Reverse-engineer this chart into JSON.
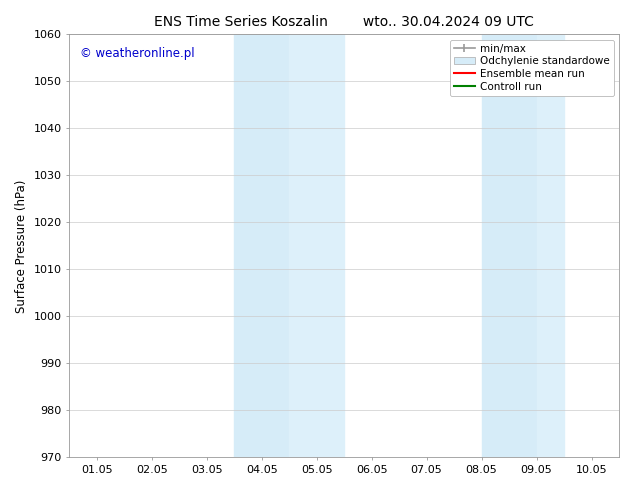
{
  "title_left": "ENS Time Series Koszalin",
  "title_right": "wto.. 30.04.2024 09 UTC",
  "ylabel": "Surface Pressure (hPa)",
  "ylim": [
    970,
    1060
  ],
  "yticks": [
    970,
    980,
    990,
    1000,
    1010,
    1020,
    1030,
    1040,
    1050,
    1060
  ],
  "xtick_labels": [
    "01.05",
    "02.05",
    "03.05",
    "04.05",
    "05.05",
    "06.05",
    "07.05",
    "08.05",
    "09.05",
    "10.05"
  ],
  "xlim_start": 0.0,
  "xlim_end": 9.0,
  "shaded_bands": [
    {
      "x_start": 3.0,
      "x_end": 4.0,
      "color": "#d6ecf8"
    },
    {
      "x_start": 4.0,
      "x_end": 5.0,
      "color": "#ddf0fa"
    },
    {
      "x_start": 7.5,
      "x_end": 8.5,
      "color": "#d6ecf8"
    },
    {
      "x_start": 8.5,
      "x_end": 9.0,
      "color": "#ddf0fa"
    }
  ],
  "background_color": "#ffffff",
  "watermark_text": "© weatheronline.pl",
  "watermark_color": "#0000cc",
  "legend_items": [
    {
      "label": "min/max",
      "color": "#aaaaaa",
      "type": "errorbar"
    },
    {
      "label": "Odchylenie standardowe",
      "color": "#d6ecf8",
      "type": "fill"
    },
    {
      "label": "Ensemble mean run",
      "color": "#ff0000",
      "type": "line"
    },
    {
      "label": "Controll run",
      "color": "#008000",
      "type": "line"
    }
  ],
  "grid_color": "#cccccc",
  "tick_label_fontsize": 8,
  "title_fontsize": 10,
  "ylabel_fontsize": 8.5,
  "figsize": [
    6.34,
    4.9
  ],
  "dpi": 100
}
